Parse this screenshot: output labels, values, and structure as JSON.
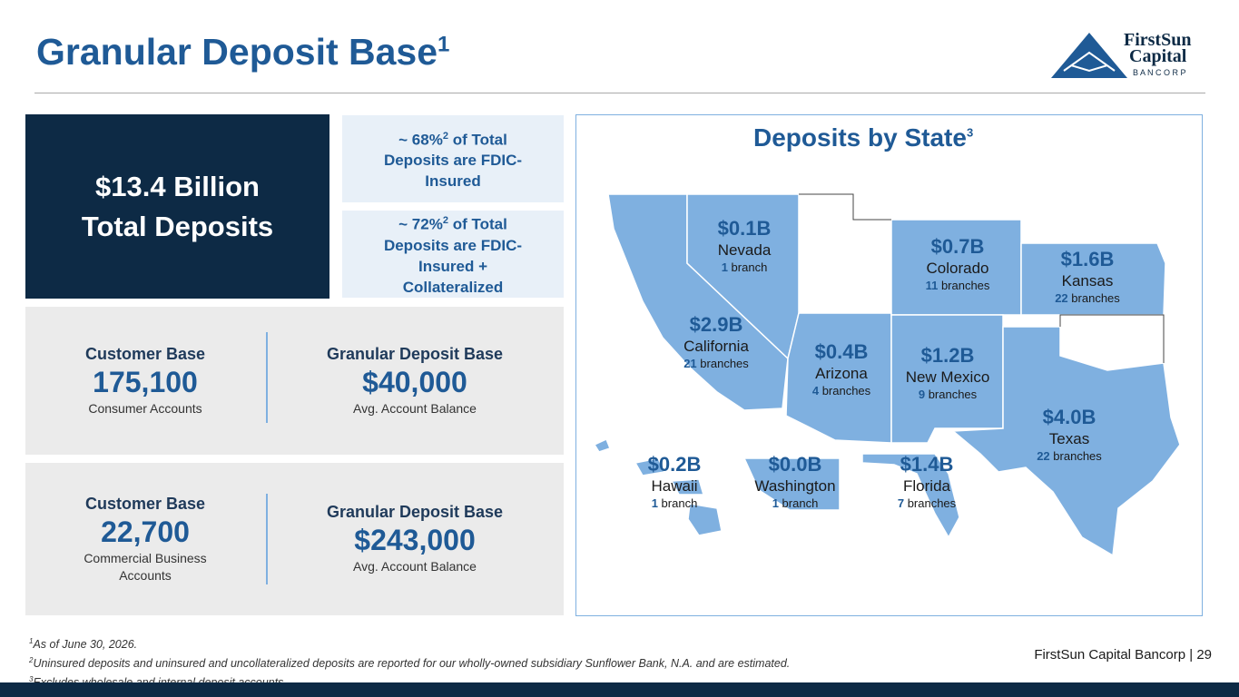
{
  "header": {
    "title": "Granular Deposit Base",
    "title_sup": "1",
    "logo": {
      "line1": "FirstSun",
      "line2": "Capital",
      "line3": "B A N C O R P"
    }
  },
  "summary": {
    "amount": "$13.4 Billion",
    "label": "Total Deposits"
  },
  "insured": [
    {
      "prefix": "~ 68%",
      "sup": "2",
      "text": "of Total Deposits are FDIC-Insured"
    },
    {
      "prefix": "~ 72%",
      "sup": "2",
      "text": "of Total Deposits are FDIC-Insured + Collateralized"
    }
  ],
  "consumer": {
    "left": {
      "heading": "Customer Base",
      "value": "175,100",
      "caption": "Consumer Accounts"
    },
    "right": {
      "heading": "Granular Deposit Base",
      "value": "$40,000",
      "caption": "Avg. Account Balance"
    }
  },
  "commercial": {
    "left": {
      "heading": "Customer Base",
      "value": "22,700",
      "caption": "Commercial Business Accounts"
    },
    "right": {
      "heading": "Granular Deposit Base",
      "value": "$243,000",
      "caption": "Avg. Account Balance"
    }
  },
  "map": {
    "title": "Deposits by State",
    "title_sup": "3",
    "states": [
      {
        "amount": "$0.1B",
        "name": "Nevada",
        "count": "1",
        "unit": "branch"
      },
      {
        "amount": "$0.7B",
        "name": "Colorado",
        "count": "11",
        "unit": "branches"
      },
      {
        "amount": "$1.6B",
        "name": "Kansas",
        "count": "22",
        "unit": "branches"
      },
      {
        "amount": "$2.9B",
        "name": "California",
        "count": "21",
        "unit": "branches"
      },
      {
        "amount": "$0.4B",
        "name": "Arizona",
        "count": "4",
        "unit": "branches"
      },
      {
        "amount": "$1.2B",
        "name": "New Mexico",
        "count": "9",
        "unit": "branches"
      },
      {
        "amount": "$4.0B",
        "name": "Texas",
        "count": "22",
        "unit": "branches"
      },
      {
        "amount": "$0.2B",
        "name": "Hawaii",
        "count": "1",
        "unit": "branch"
      },
      {
        "amount": "$0.0B",
        "name": "Washington",
        "count": "1",
        "unit": "branch"
      },
      {
        "amount": "$1.4B",
        "name": "Florida",
        "count": "7",
        "unit": "branches"
      }
    ]
  },
  "footnotes": [
    {
      "mark": "1",
      "text": "As of June 30, 2026."
    },
    {
      "mark": "2",
      "text": "Uninsured deposits and uninsured and uncollateralized deposits are reported for our wholly-owned subsidiary Sunflower Bank, N.A. and are estimated."
    },
    {
      "mark": "3",
      "text": "Excludes wholesale and internal deposit accounts."
    }
  ],
  "footer": {
    "company": "FirstSun Capital Bancorp",
    "separator": "|",
    "page": "29"
  }
}
